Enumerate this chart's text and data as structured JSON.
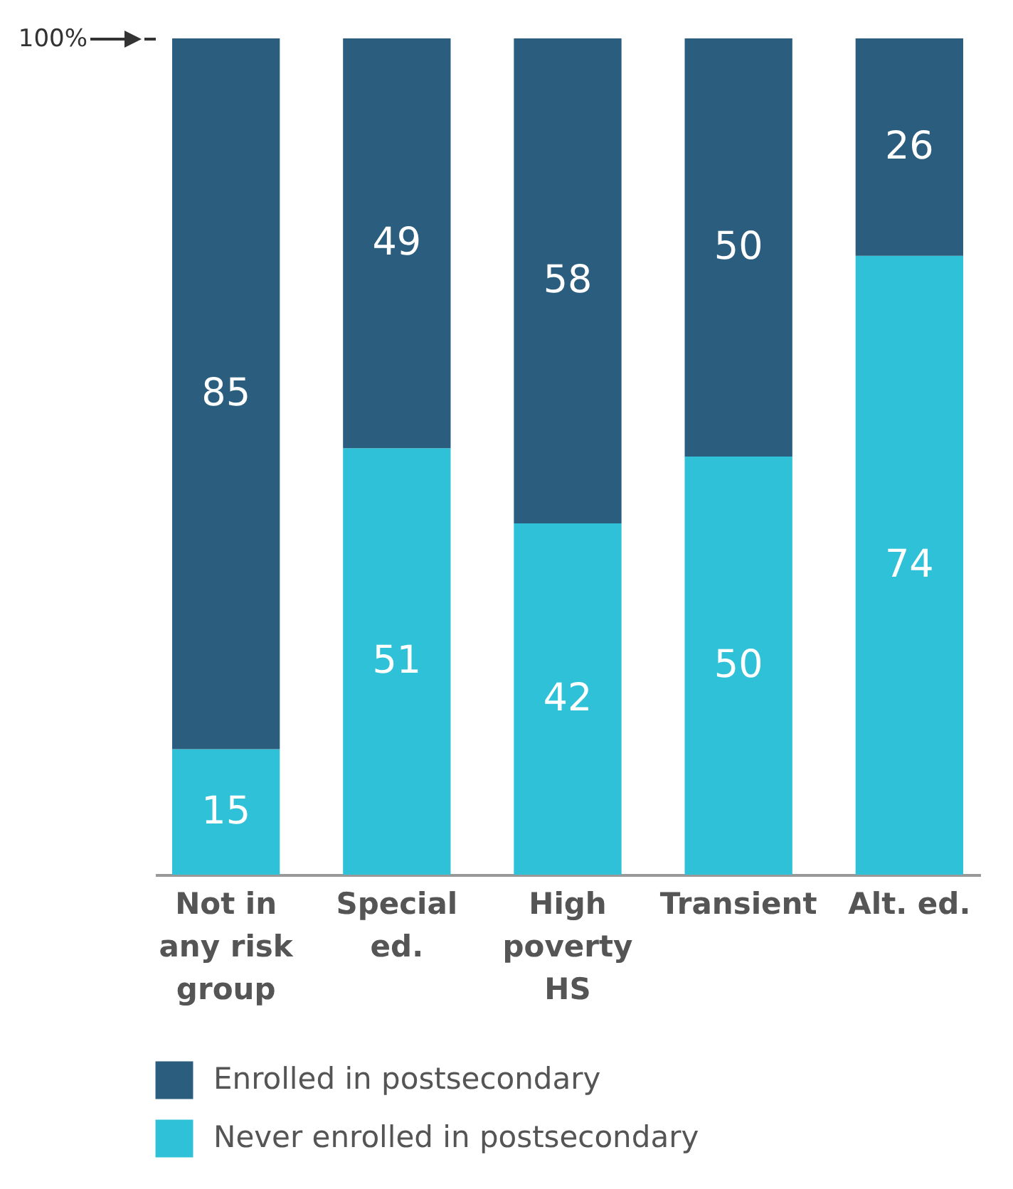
{
  "chart_data": {
    "type": "bar",
    "stacked": true,
    "categories": [
      "Not in any risk group",
      "Special ed.",
      "High poverty HS",
      "Transient",
      "Alt. ed."
    ],
    "series": [
      {
        "name": "Never enrolled in postsecondary",
        "color": "#2ec1d7",
        "values": [
          15,
          51,
          42,
          50,
          74
        ]
      },
      {
        "name": "Enrolled in postsecondary",
        "color": "#2b5e7e",
        "values": [
          85,
          49,
          58,
          50,
          26
        ]
      }
    ],
    "ylim": [
      0,
      100
    ],
    "yticks": [
      {
        "value": 100,
        "label": "100%"
      }
    ],
    "data_labels": true,
    "legend": "bottom",
    "grid": false
  }
}
